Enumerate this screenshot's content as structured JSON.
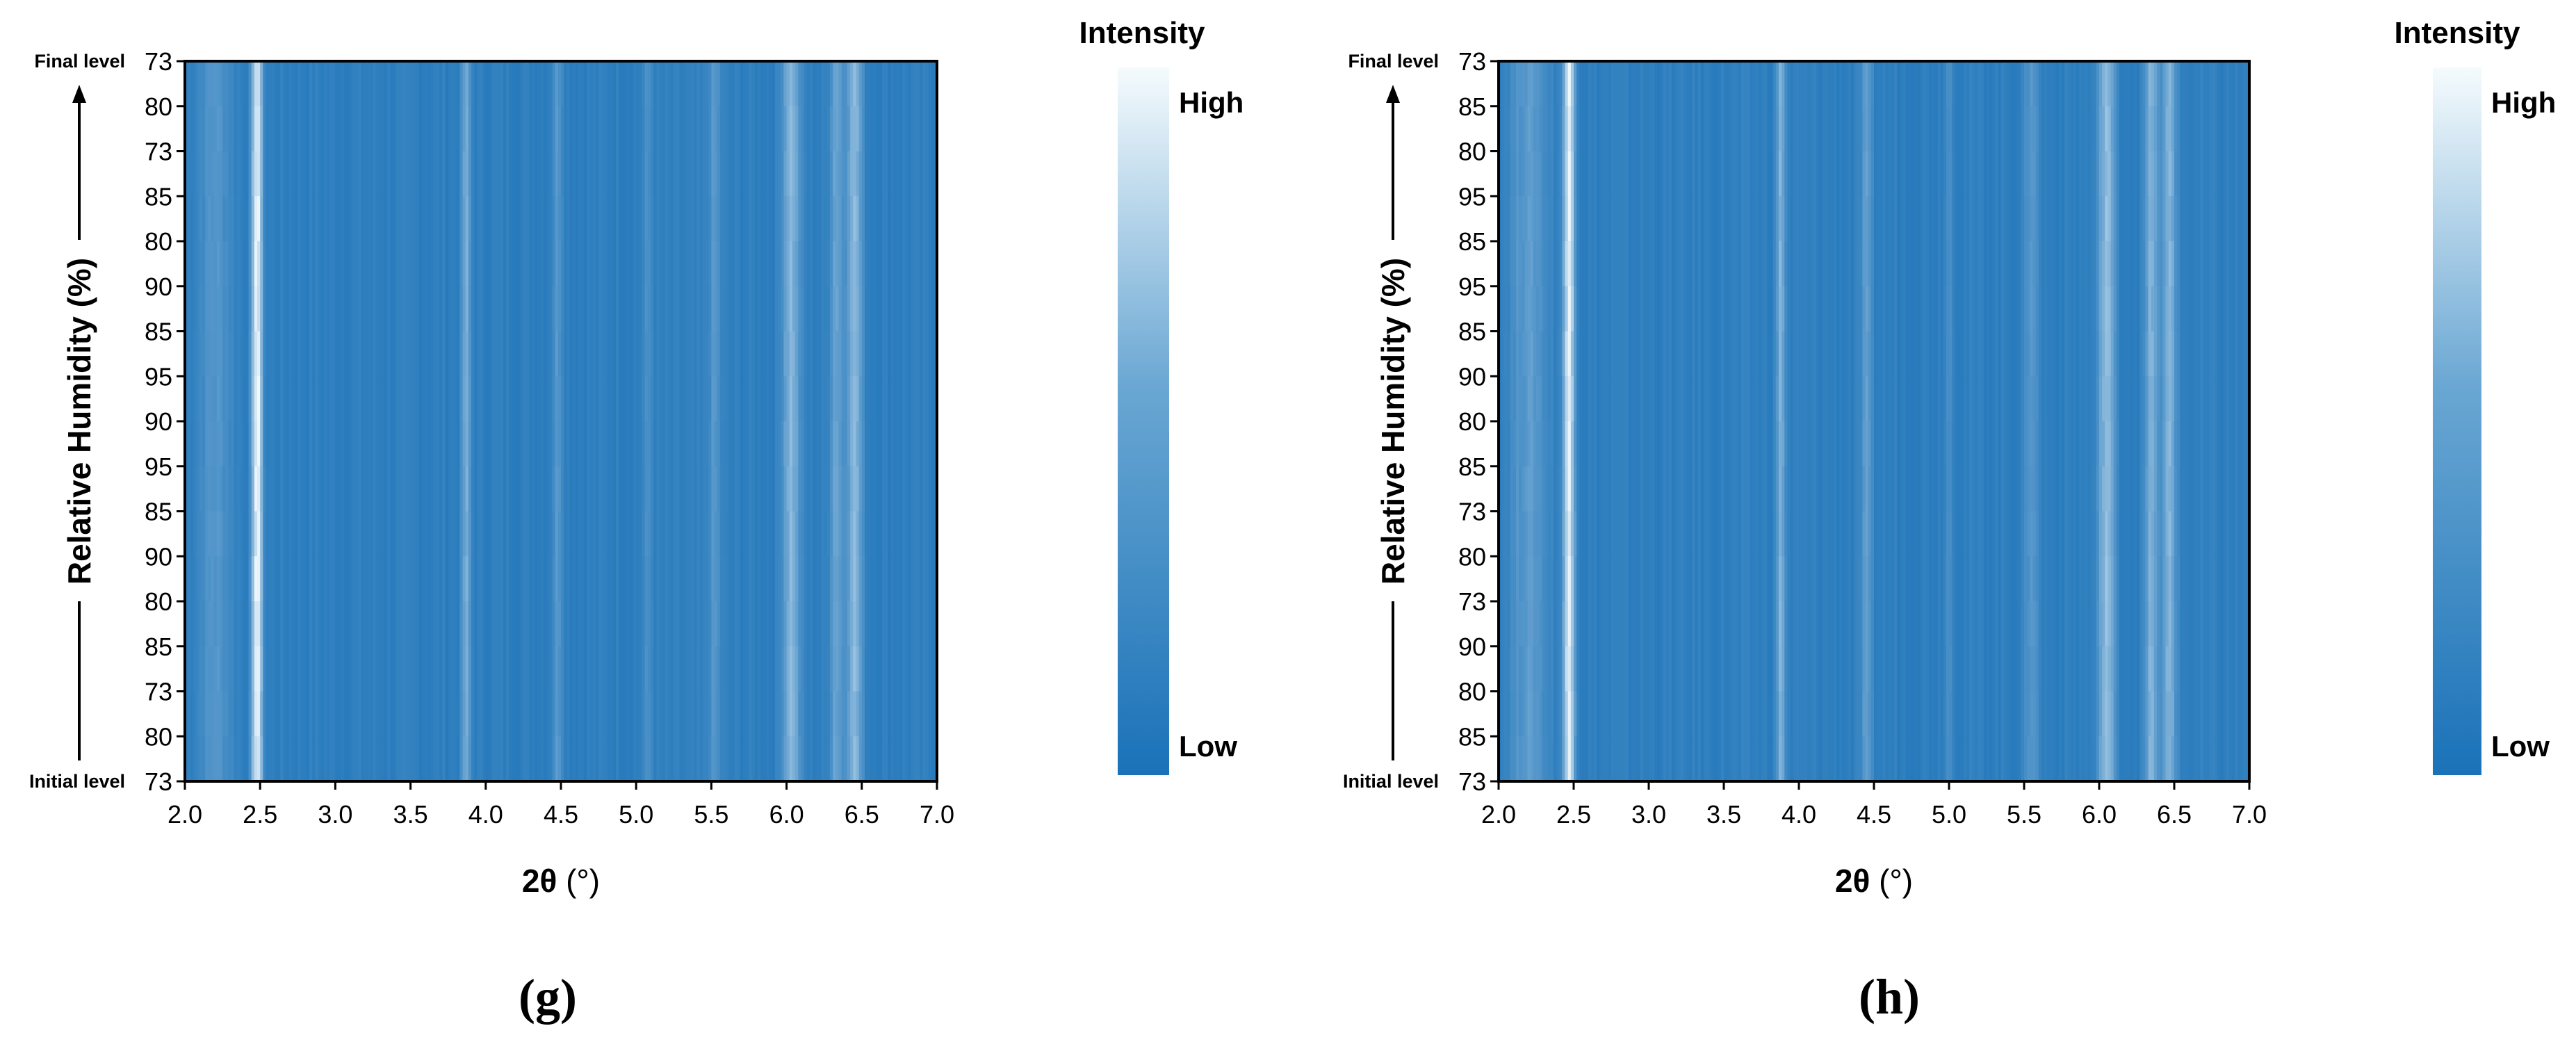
{
  "chart_data": [
    {
      "type": "heatmap",
      "panel_label": "(g)",
      "x": {
        "label_bold": "2θ",
        "label_rest": " (°)",
        "range": [
          2.0,
          7.0
        ],
        "ticks": [
          "2.0",
          "2.5",
          "3.0",
          "3.5",
          "4.0",
          "4.5",
          "5.0",
          "5.5",
          "6.0",
          "6.5",
          "7.0"
        ]
      },
      "y": {
        "label": "Relative Humidity (%)",
        "ticks_top_to_bottom": [
          "73",
          "80",
          "73",
          "85",
          "80",
          "90",
          "85",
          "95",
          "90",
          "95",
          "85",
          "90",
          "80",
          "85",
          "73",
          "80",
          "73"
        ],
        "top_annotation": "Final level",
        "bottom_annotation": "Initial level"
      },
      "colorbar": {
        "title": "Intensity",
        "high": "High",
        "low": "Low",
        "color_low": "#1a72b8",
        "color_high": "#f5fbfd"
      },
      "intensity_peaks": [
        {
          "two_theta": 2.48,
          "amp": 0.95,
          "width": 0.022
        },
        {
          "two_theta": 2.2,
          "amp": 0.18,
          "width": 0.08
        },
        {
          "two_theta": 3.87,
          "amp": 0.35,
          "width": 0.02
        },
        {
          "two_theta": 4.48,
          "amp": 0.2,
          "width": 0.025
        },
        {
          "two_theta": 5.08,
          "amp": 0.12,
          "width": 0.025
        },
        {
          "two_theta": 5.52,
          "amp": 0.18,
          "width": 0.03
        },
        {
          "two_theta": 6.03,
          "amp": 0.42,
          "width": 0.04
        },
        {
          "two_theta": 6.33,
          "amp": 0.3,
          "width": 0.03
        },
        {
          "two_theta": 6.45,
          "amp": 0.45,
          "width": 0.035
        }
      ]
    },
    {
      "type": "heatmap",
      "panel_label": "(h)",
      "x": {
        "label_bold": "2θ",
        "label_rest": " (°)",
        "range": [
          2.0,
          7.0
        ],
        "ticks": [
          "2.0",
          "2.5",
          "3.0",
          "3.5",
          "4.0",
          "4.5",
          "5.0",
          "5.5",
          "6.0",
          "6.5",
          "7.0"
        ]
      },
      "y": {
        "label": "Relative Humidity (%)",
        "ticks_top_to_bottom": [
          "73",
          "85",
          "80",
          "95",
          "85",
          "95",
          "85",
          "90",
          "80",
          "85",
          "73",
          "80",
          "73",
          "90",
          "80",
          "85",
          "73"
        ],
        "top_annotation": "Final level",
        "bottom_annotation": "Initial level"
      },
      "colorbar": {
        "title": "Intensity",
        "high": "High",
        "low": "Low",
        "color_low": "#1a72b8",
        "color_high": "#f5fbfd"
      },
      "intensity_peaks": [
        {
          "two_theta": 2.47,
          "amp": 0.85,
          "width": 0.025
        },
        {
          "two_theta": 2.2,
          "amp": 0.22,
          "width": 0.09
        },
        {
          "two_theta": 3.88,
          "amp": 0.4,
          "width": 0.02
        },
        {
          "two_theta": 4.45,
          "amp": 0.22,
          "width": 0.025
        },
        {
          "two_theta": 5.0,
          "amp": 0.12,
          "width": 0.025
        },
        {
          "two_theta": 5.55,
          "amp": 0.22,
          "width": 0.03
        },
        {
          "two_theta": 6.05,
          "amp": 0.5,
          "width": 0.035
        },
        {
          "two_theta": 6.35,
          "amp": 0.4,
          "width": 0.03
        },
        {
          "two_theta": 6.47,
          "amp": 0.42,
          "width": 0.03
        }
      ]
    }
  ]
}
